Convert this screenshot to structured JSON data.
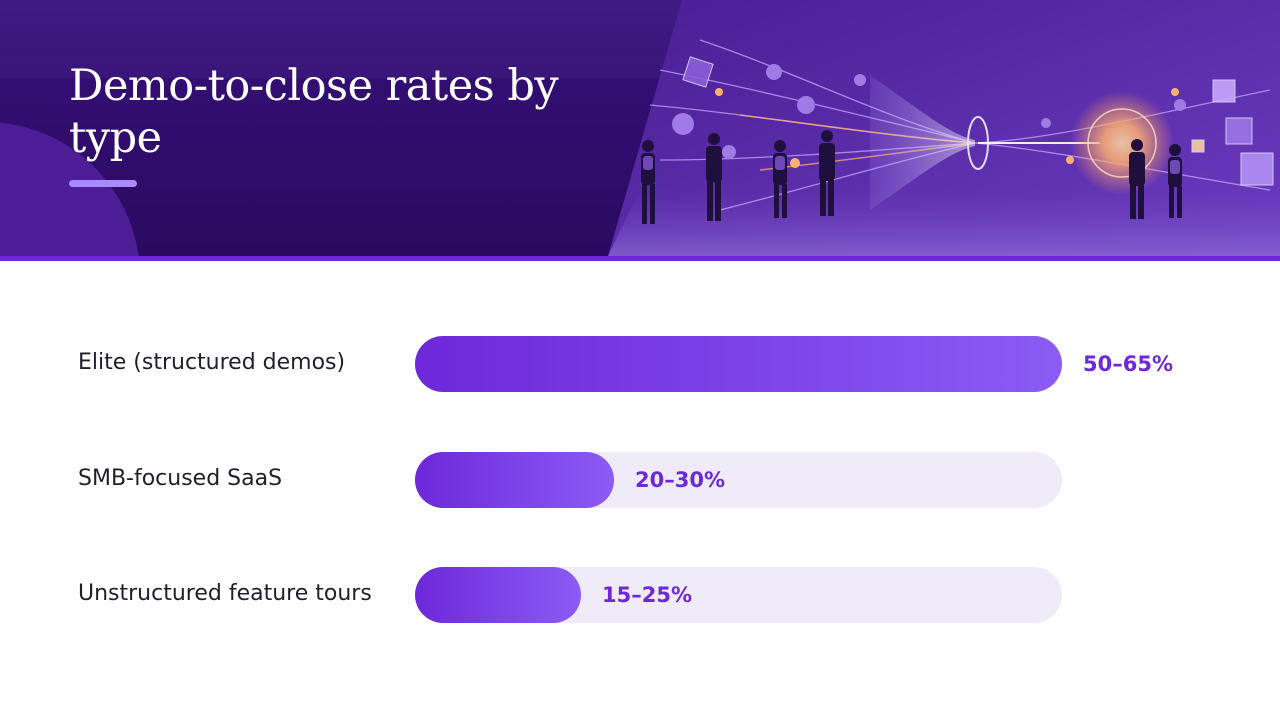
{
  "slide": {
    "title": "Demo-to-close rates by type",
    "hero_image": "funnel-illustration"
  },
  "colors": {
    "header_bg": "#2d0d66",
    "accent": "#6d28d9",
    "bar_light": "#8b5cf6",
    "track": "#efebf8",
    "label_text": "#1f1f2e"
  },
  "chart_data": {
    "type": "bar",
    "orientation": "horizontal",
    "categories": [
      "Elite (structured demos)",
      "SMB-focused SaaS",
      "Unstructured feature tours"
    ],
    "ranges": [
      [
        50,
        65
      ],
      [
        20,
        30
      ],
      [
        15,
        25
      ]
    ],
    "value_labels": [
      "50–65%",
      "20–30%",
      "15–25%"
    ],
    "title": "",
    "xlabel": "",
    "ylabel": "",
    "xlim": [
      0,
      65
    ],
    "grid": false,
    "legend": "none"
  }
}
